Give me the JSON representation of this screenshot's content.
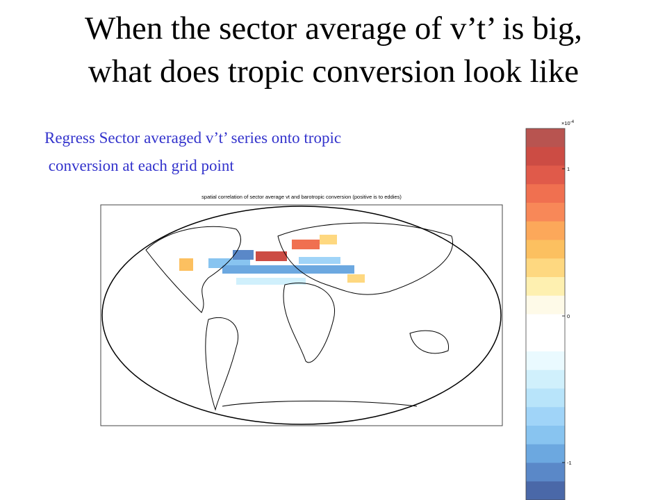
{
  "slide": {
    "title_lines": [
      "When the sector average of v’t’ is big,",
      "what does tropic conversion look like"
    ],
    "caption_lines": [
      "Regress Sector averaged v’t’ series onto tropic",
      " conversion at each grid point"
    ],
    "figure": {
      "title": "spatial correlation of sector average vt and barotropic conversion (positive is to eddies)",
      "colorbar": {
        "multiplier": "×10",
        "exponent": "-4",
        "ticks": [
          1,
          0,
          -1
        ],
        "colors": [
          "#b85450",
          "#cc4c44",
          "#e05a4a",
          "#f07050",
          "#f88858",
          "#fca85a",
          "#fcc060",
          "#fed880",
          "#fef0b0",
          "#fefae8",
          "#ffffff",
          "#ffffff",
          "#eafaff",
          "#d0f0fc",
          "#b8e4fa",
          "#a0d4f8",
          "#88c4f0",
          "#6ca8e0",
          "#5a88c8",
          "#4a68a8"
        ]
      }
    }
  }
}
